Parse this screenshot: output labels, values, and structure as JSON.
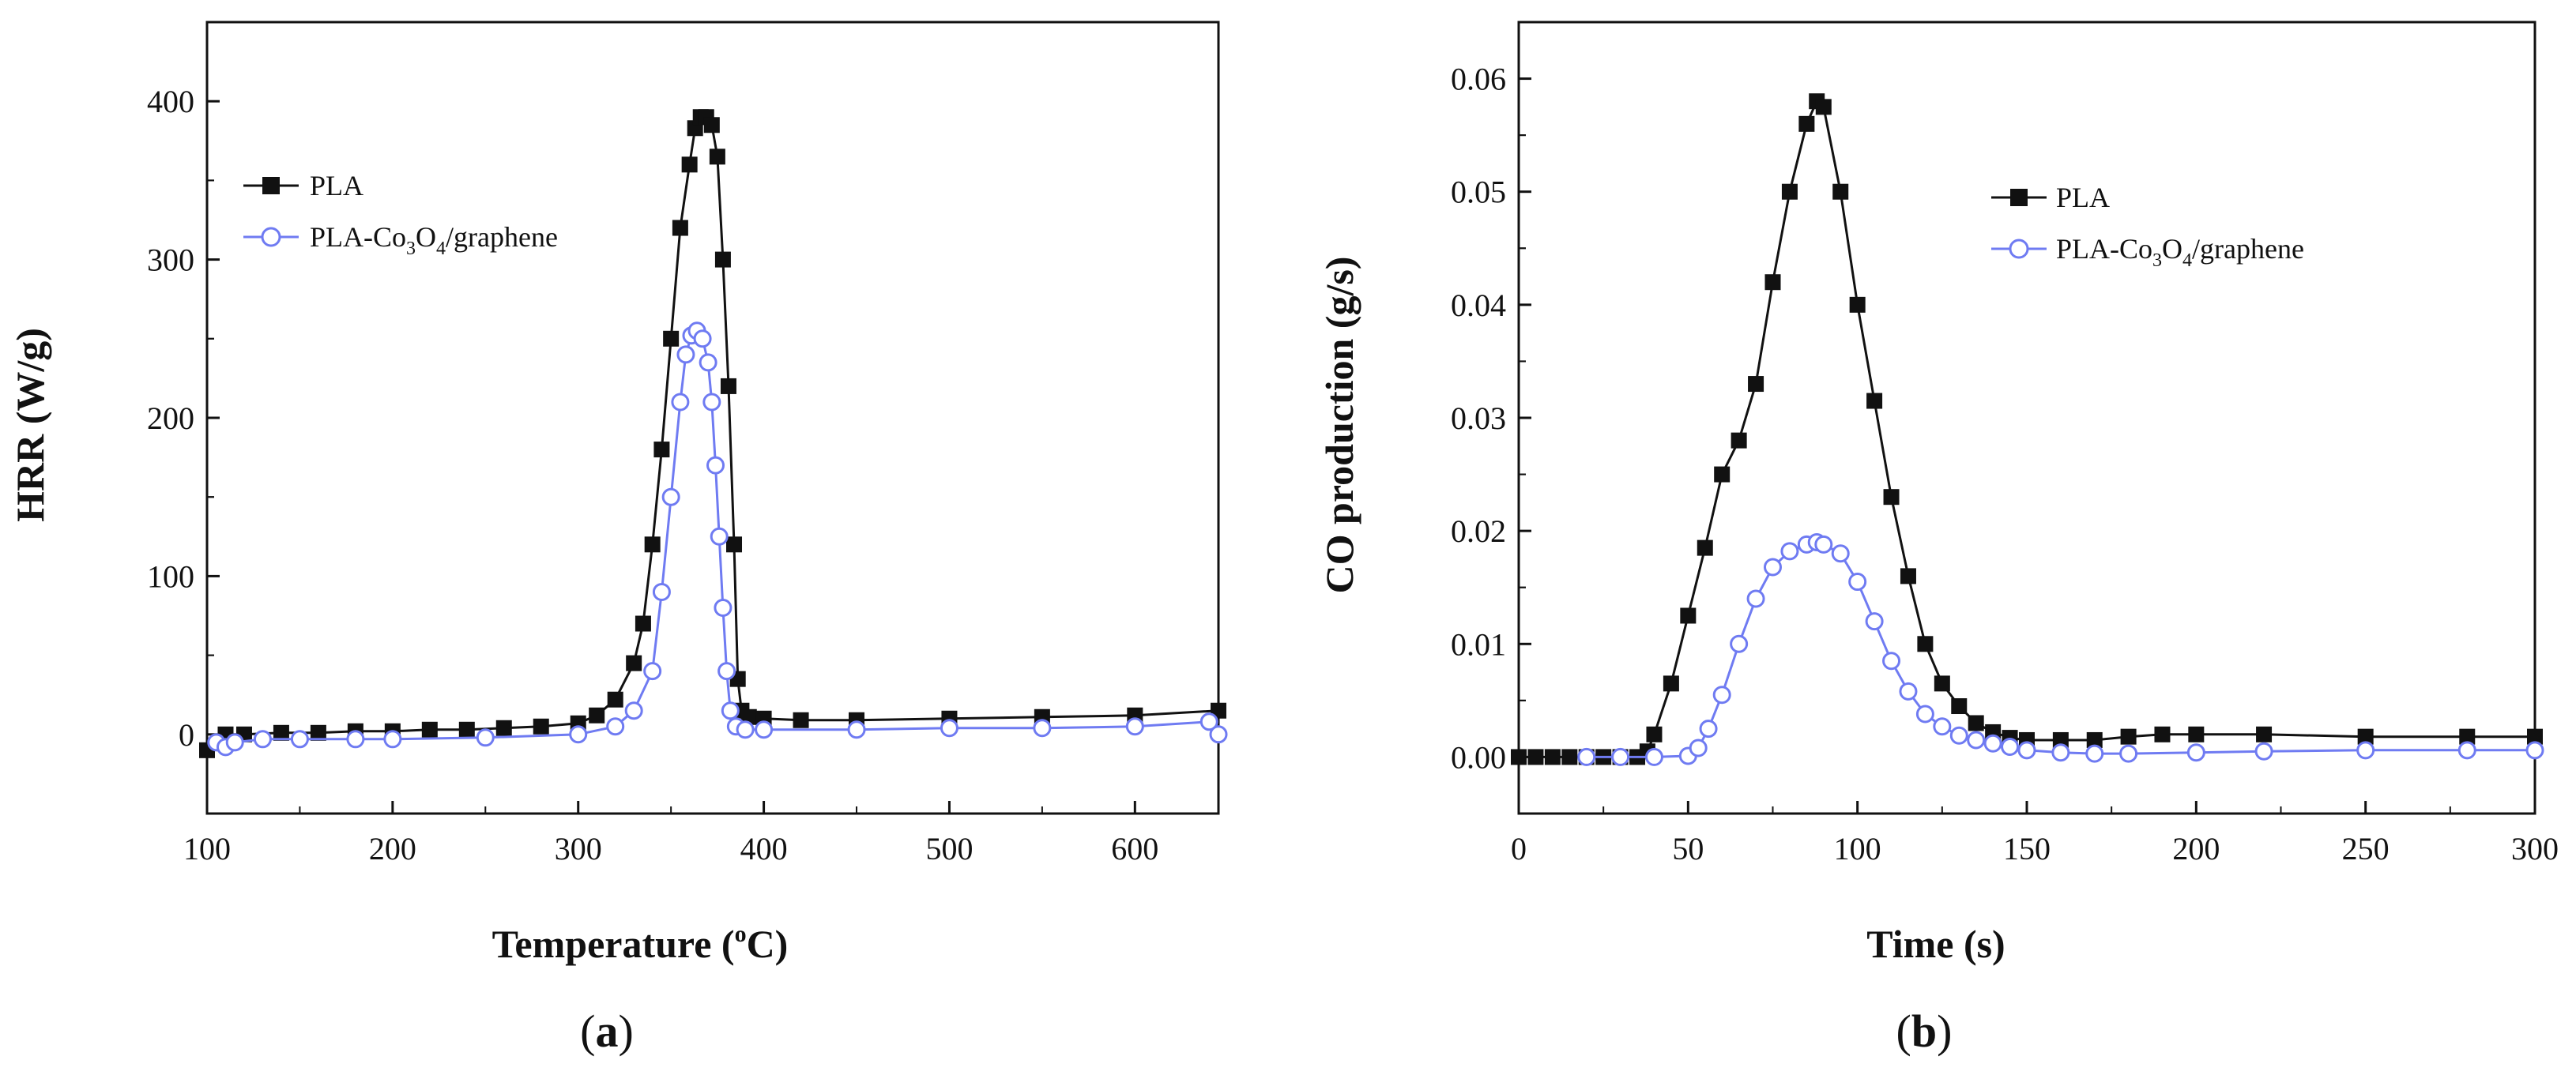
{
  "chart_data": [
    {
      "id": "a",
      "type": "scatter",
      "panel_caption": {
        "open": "(",
        "letter": "a",
        "close": ")"
      },
      "xlabel": {
        "main": "Temperature (",
        "sup": "o",
        "tail": "C)"
      },
      "ylabel": "HRR (W/g)",
      "xlim": [
        100,
        645
      ],
      "ylim": [
        -50,
        450
      ],
      "xticks": [
        100,
        200,
        300,
        400,
        500,
        600
      ],
      "yticks": [
        0,
        100,
        200,
        300,
        400
      ],
      "legend_position": "upper-left",
      "colors": {
        "PLA": "#111111",
        "PLA-Co3O4/graphene": "#6f7bf2"
      },
      "series": [
        {
          "name": "PLA",
          "legend": {
            "main": "PLA"
          },
          "marker": "filled-square",
          "x": [
            100,
            110,
            120,
            140,
            160,
            180,
            200,
            220,
            240,
            260,
            280,
            300,
            310,
            320,
            330,
            335,
            340,
            345,
            350,
            355,
            360,
            363,
            366,
            369,
            372,
            375,
            378,
            381,
            384,
            386,
            388,
            392,
            400,
            420,
            450,
            500,
            550,
            600,
            645
          ],
          "values": [
            -10,
            0,
            0,
            1,
            1,
            2,
            2,
            3,
            3,
            4,
            5,
            7,
            12,
            22,
            45,
            70,
            120,
            180,
            250,
            320,
            360,
            383,
            390,
            390,
            385,
            365,
            300,
            220,
            120,
            35,
            15,
            11,
            10,
            9,
            9,
            10,
            11,
            12,
            15
          ]
        },
        {
          "name": "PLA-Co3O4/graphene",
          "legend": {
            "main": "PLA-Co",
            "sub1": "3",
            "mid": "O",
            "sub2": "4",
            "tail": "/graphene"
          },
          "marker": "open-circle",
          "x": [
            105,
            110,
            115,
            130,
            150,
            180,
            200,
            250,
            300,
            320,
            330,
            340,
            345,
            350,
            355,
            358,
            361,
            364,
            367,
            370,
            372,
            374,
            376,
            378,
            380,
            382,
            385,
            390,
            400,
            450,
            500,
            550,
            600,
            640,
            645
          ],
          "values": [
            -5,
            -8,
            -5,
            -3,
            -3,
            -3,
            -3,
            -2,
            0,
            5,
            15,
            40,
            90,
            150,
            210,
            240,
            252,
            255,
            250,
            235,
            210,
            170,
            125,
            80,
            40,
            15,
            5,
            3,
            3,
            3,
            4,
            4,
            5,
            8,
            0
          ]
        }
      ]
    },
    {
      "id": "b",
      "type": "scatter",
      "panel_caption": {
        "open": "(",
        "letter": "b",
        "close": ")"
      },
      "xlabel": {
        "main": "Time (s)"
      },
      "ylabel": "CO production (g/s)",
      "xlim": [
        0,
        300
      ],
      "ylim": [
        -0.005,
        0.065
      ],
      "xticks": [
        0,
        50,
        100,
        150,
        200,
        250,
        300
      ],
      "yticks": [
        0.0,
        0.01,
        0.02,
        0.03,
        0.04,
        0.05,
        0.06
      ],
      "ytick_labels": [
        "0.00",
        "0.01",
        "0.02",
        "0.03",
        "0.04",
        "0.05",
        "0.06"
      ],
      "legend_position": "upper-right",
      "colors": {
        "PLA": "#111111",
        "PLA-Co3O4/graphene": "#6f7bf2"
      },
      "series": [
        {
          "name": "PLA",
          "legend": {
            "main": "PLA"
          },
          "marker": "filled-square",
          "x": [
            0,
            5,
            10,
            15,
            20,
            25,
            30,
            35,
            38,
            40,
            45,
            50,
            55,
            60,
            65,
            70,
            75,
            80,
            85,
            88,
            90,
            95,
            100,
            105,
            110,
            115,
            120,
            125,
            130,
            135,
            140,
            145,
            150,
            160,
            170,
            180,
            190,
            200,
            220,
            250,
            280,
            300
          ],
          "values": [
            0,
            0,
            0,
            0,
            0,
            0,
            0,
            0,
            0.0005,
            0.002,
            0.0065,
            0.0125,
            0.0185,
            0.025,
            0.028,
            0.033,
            0.042,
            0.05,
            0.056,
            0.058,
            0.0575,
            0.05,
            0.04,
            0.0315,
            0.023,
            0.016,
            0.01,
            0.0065,
            0.0045,
            0.003,
            0.0022,
            0.0017,
            0.0015,
            0.0015,
            0.0015,
            0.0018,
            0.002,
            0.002,
            0.002,
            0.0018,
            0.0018,
            0.0018
          ]
        },
        {
          "name": "PLA-Co3O4/graphene",
          "legend": {
            "main": "PLA-Co",
            "sub1": "3",
            "mid": "O",
            "sub2": "4",
            "tail": "/graphene"
          },
          "marker": "open-circle",
          "x": [
            20,
            30,
            40,
            50,
            53,
            56,
            60,
            65,
            70,
            75,
            80,
            85,
            88,
            90,
            95,
            100,
            105,
            110,
            115,
            120,
            125,
            130,
            135,
            140,
            145,
            150,
            160,
            170,
            180,
            200,
            220,
            250,
            280,
            300
          ],
          "values": [
            0,
            0,
            0,
            0.0001,
            0.0008,
            0.0025,
            0.0055,
            0.01,
            0.014,
            0.0168,
            0.0182,
            0.0188,
            0.019,
            0.0188,
            0.018,
            0.0155,
            0.012,
            0.0085,
            0.0058,
            0.0038,
            0.0027,
            0.0019,
            0.0015,
            0.0012,
            0.0009,
            0.0006,
            0.0004,
            0.0003,
            0.0003,
            0.0004,
            0.0005,
            0.0006,
            0.0006,
            0.0006
          ]
        }
      ]
    }
  ]
}
